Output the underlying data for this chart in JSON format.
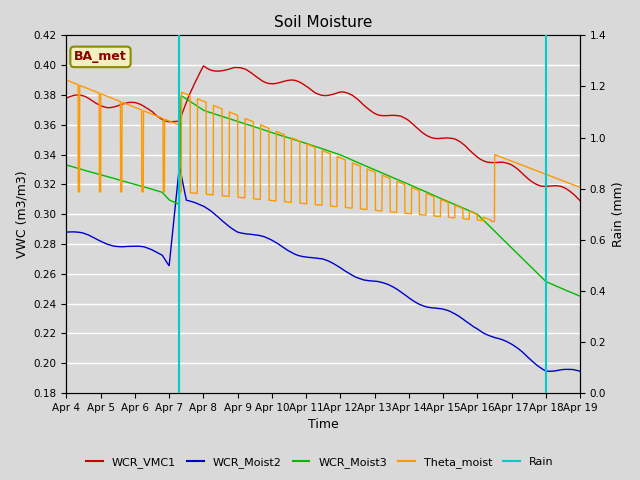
{
  "title": "Soil Moisture",
  "ylabel_left": "VWC (m3/m3)",
  "ylabel_right": "Rain (mm)",
  "xlabel": "Time",
  "ylim_left": [
    0.18,
    0.42
  ],
  "ylim_right": [
    0.0,
    1.4
  ],
  "bg_color": "#d9d9d9",
  "legend_label": "BA_met",
  "series_colors": {
    "WCR_VMC1": "#cc0000",
    "WCR_Moist2": "#0000cc",
    "WCR_Moist3": "#00bb00",
    "Theta_moist": "#ff9900",
    "Rain": "#00cccc"
  },
  "x_tick_labels": [
    "Apr 4",
    "Apr 5",
    "Apr 6",
    "Apr 7",
    "Apr 8",
    "Apr 9",
    "Apr 10",
    "Apr 11",
    "Apr 12",
    "Apr 13",
    "Apr 14",
    "Apr 15",
    "Apr 16",
    "Apr 17",
    "Apr 18",
    "Apr 19"
  ],
  "yticks_left": [
    0.18,
    0.2,
    0.22,
    0.24,
    0.26,
    0.28,
    0.3,
    0.32,
    0.34,
    0.36,
    0.38,
    0.4,
    0.42
  ],
  "yticks_right": [
    0.0,
    0.2,
    0.4,
    0.6,
    0.8,
    1.0,
    1.2,
    1.4
  ],
  "rain_spike_days": [
    3.3,
    14.0
  ],
  "num_days": 15
}
